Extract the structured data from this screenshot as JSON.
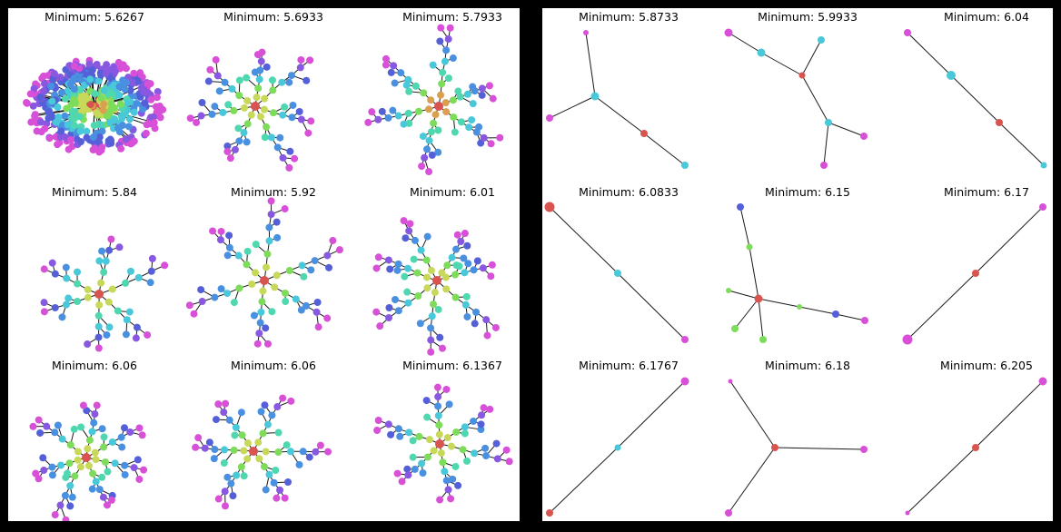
{
  "panels": [
    {
      "name": "left",
      "titles": [
        "Minimum: 5.6267",
        "Minimum: 5.6933",
        "Minimum: 5.7933",
        "Minimum: 5.84",
        "Minimum: 5.92",
        "Minimum: 6.01",
        "Minimum: 6.06",
        "Minimum: 6.06",
        "Minimum: 6.1367"
      ]
    },
    {
      "name": "right",
      "titles": [
        "Minimum: 5.8733",
        "Minimum: 5.9933",
        "Minimum: 6.04",
        "Minimum: 6.0833",
        "Minimum: 6.15",
        "Minimum: 6.17",
        "Minimum: 6.1767",
        "Minimum: 6.18",
        "Minimum: 6.205"
      ]
    }
  ],
  "palette": [
    "#d9534f",
    "#d9a050",
    "#c8d858",
    "#7ddc5a",
    "#4fd8b0",
    "#48c8d8",
    "#4a90e0",
    "#5560d8",
    "#8858e0",
    "#d850d8"
  ]
}
